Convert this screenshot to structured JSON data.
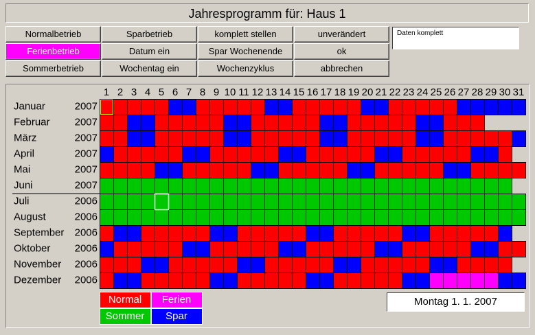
{
  "header": {
    "title": "Jahresprogramm für: Haus 1"
  },
  "buttons": [
    [
      "Normalbetrieb",
      "Sparbetrieb",
      "komplett stellen",
      "unverändert"
    ],
    [
      "Ferienbetrieb",
      "Datum ein",
      "Spar Wochenende",
      "ok"
    ],
    [
      "Sommerbetrieb",
      "Wochentag ein",
      "Wochenzyklus",
      "abbrechen"
    ]
  ],
  "status": "Daten komplett",
  "day_numbers": [
    1,
    2,
    3,
    4,
    5,
    6,
    7,
    8,
    9,
    10,
    11,
    12,
    13,
    14,
    15,
    16,
    17,
    18,
    19,
    20,
    21,
    22,
    23,
    24,
    25,
    26,
    27,
    28,
    29,
    30,
    31
  ],
  "months": [
    {
      "name": "Januar",
      "year": "2007",
      "days": 31,
      "base": "Normal",
      "Spar": [
        6,
        7,
        13,
        14,
        20,
        21,
        27,
        28,
        29,
        30,
        31
      ],
      "Ferien": []
    },
    {
      "name": "Februar",
      "year": "2007",
      "days": 28,
      "base": "Normal",
      "Spar": [
        3,
        4,
        10,
        11,
        17,
        18,
        24,
        25
      ],
      "Ferien": []
    },
    {
      "name": "März",
      "year": "2007",
      "days": 31,
      "base": "Normal",
      "Spar": [
        3,
        4,
        10,
        11,
        17,
        18,
        24,
        25,
        31
      ],
      "Ferien": []
    },
    {
      "name": "April",
      "year": "2007",
      "days": 30,
      "base": "Normal",
      "Spar": [
        1,
        7,
        8,
        14,
        15,
        21,
        22,
        28,
        29
      ],
      "Ferien": []
    },
    {
      "name": "Mai",
      "year": "2007",
      "days": 31,
      "base": "Normal",
      "Spar": [
        5,
        6,
        12,
        13,
        19,
        20,
        26,
        27
      ],
      "Ferien": []
    },
    {
      "name": "Juni",
      "year": "2007",
      "days": 30,
      "base": "Sommer",
      "Spar": [],
      "Ferien": []
    },
    {
      "name": "Juli",
      "year": "2006",
      "days": 31,
      "base": "Sommer",
      "Spar": [],
      "Ferien": []
    },
    {
      "name": "August",
      "year": "2006",
      "days": 31,
      "base": "Sommer",
      "Spar": [],
      "Ferien": []
    },
    {
      "name": "September",
      "year": "2006",
      "days": 30,
      "base": "Normal",
      "Spar": [
        2,
        3,
        9,
        10,
        16,
        17,
        23,
        24,
        30
      ],
      "Ferien": []
    },
    {
      "name": "Oktober",
      "year": "2006",
      "days": 31,
      "base": "Normal",
      "Spar": [
        1,
        7,
        8,
        14,
        15,
        21,
        22,
        28,
        29
      ],
      "Ferien": []
    },
    {
      "name": "November",
      "year": "2006",
      "days": 30,
      "base": "Normal",
      "Spar": [
        4,
        5,
        11,
        12,
        18,
        19,
        25,
        26
      ],
      "Ferien": []
    },
    {
      "name": "Dezember",
      "year": "2006",
      "days": 31,
      "base": "Normal",
      "Spar": [
        2,
        3,
        9,
        10,
        16,
        17,
        23,
        24,
        30,
        31
      ],
      "Ferien": [
        25,
        26,
        27,
        28,
        29
      ]
    }
  ],
  "legend": [
    {
      "label": "Normal",
      "color": "#ff0000"
    },
    {
      "label": "Ferien",
      "color": "#ff00ff"
    },
    {
      "label": "Sommer",
      "color": "#00c800"
    },
    {
      "label": "Spar",
      "color": "#0000ff"
    }
  ],
  "date": "Montag  1. 1. 2007"
}
